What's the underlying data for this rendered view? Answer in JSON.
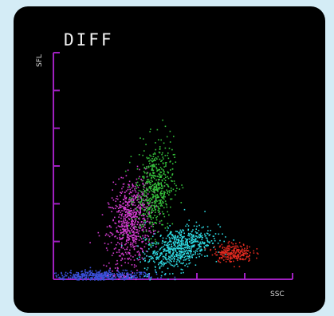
{
  "chart_data": {
    "type": "scatter",
    "title": "DIFF",
    "xlabel": "SSC",
    "ylabel": "SFL",
    "xlim": [
      0,
      100
    ],
    "ylim": [
      0,
      100
    ],
    "axis_color": "#a020c0",
    "x_ticks": 5,
    "y_ticks": 6,
    "clusters": [
      {
        "color": "#3a50d8",
        "cx": 20,
        "cy": 1.5,
        "sx": 11,
        "sy": 1.2,
        "n": 520,
        "tilt": 0
      },
      {
        "color": "#d23ccf",
        "cx": 32,
        "cy": 25,
        "sx": 4.5,
        "sy": 10,
        "n": 700,
        "tilt": 0.6
      },
      {
        "color": "#36c43c",
        "cx": 42,
        "cy": 40,
        "sx": 4,
        "sy": 10,
        "n": 520,
        "tilt": 0.4
      },
      {
        "color": "#2ed8e0",
        "cx": 52,
        "cy": 14,
        "sx": 7,
        "sy": 4.5,
        "n": 650,
        "tilt": 0.35
      },
      {
        "color": "#e02a20",
        "cx": 75,
        "cy": 12,
        "sx": 4,
        "sy": 2,
        "n": 240,
        "tilt": 0
      }
    ]
  }
}
